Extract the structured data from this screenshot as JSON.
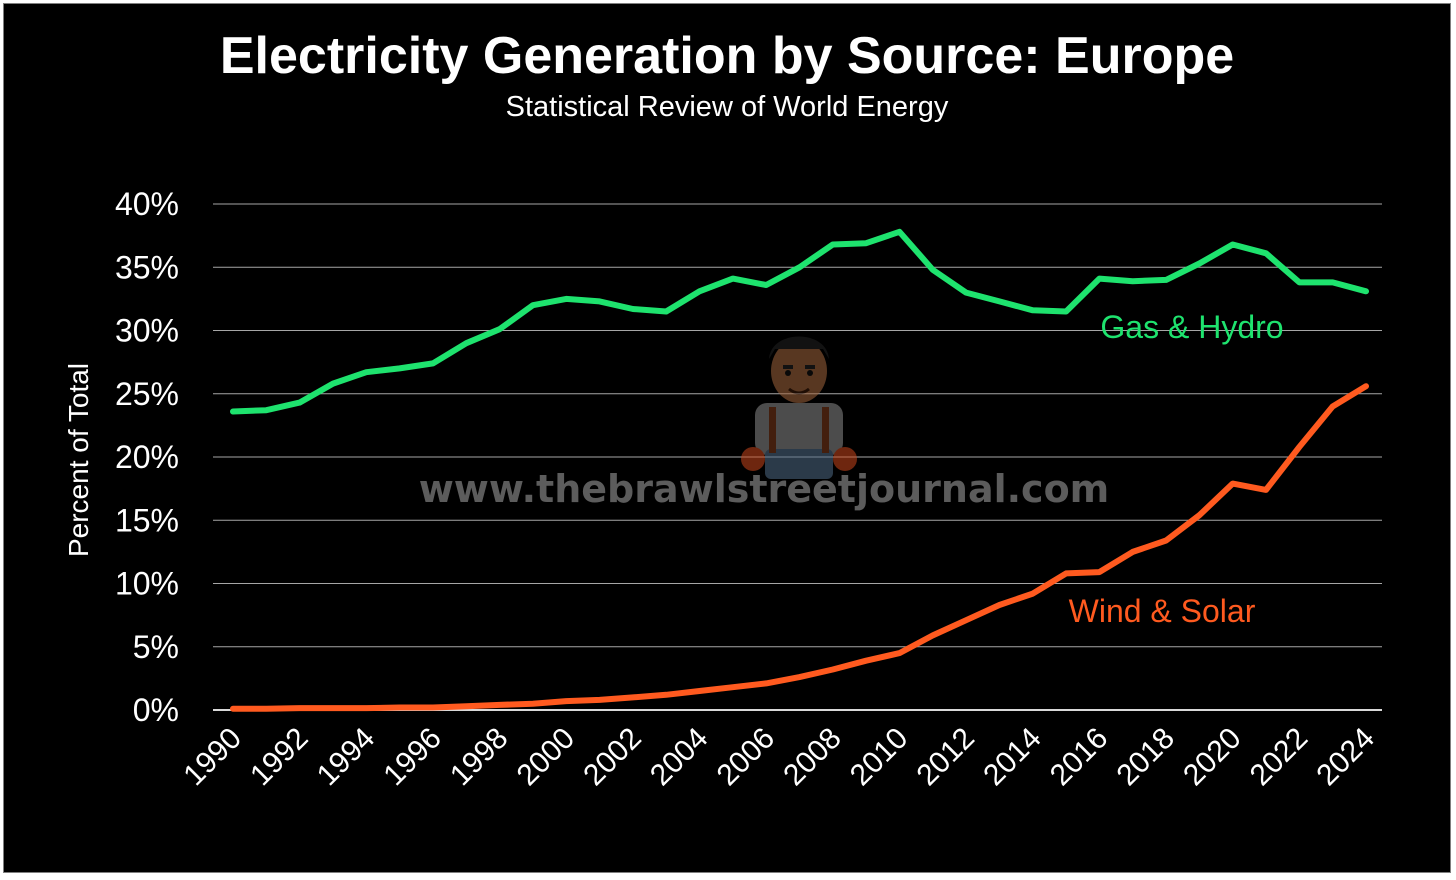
{
  "chart_data": {
    "type": "line",
    "title": "Electricity Generation by Source: Europe",
    "subtitle": "Statistical Review of World Energy",
    "xlabel": "",
    "ylabel": "Percent of Total",
    "ylim": [
      0,
      40
    ],
    "yticks": [
      "0%",
      "5%",
      "10%",
      "15%",
      "20%",
      "25%",
      "30%",
      "35%",
      "40%"
    ],
    "xtick_labels": [
      "1990",
      "1992",
      "1994",
      "1996",
      "1998",
      "2000",
      "2002",
      "2004",
      "2006",
      "2008",
      "2010",
      "2012",
      "2014",
      "2016",
      "2018",
      "2020",
      "2022",
      "2024"
    ],
    "grid": true,
    "x": [
      1990,
      1991,
      1992,
      1993,
      1994,
      1995,
      1996,
      1997,
      1998,
      1999,
      2000,
      2001,
      2002,
      2003,
      2004,
      2005,
      2006,
      2007,
      2008,
      2009,
      2010,
      2011,
      2012,
      2013,
      2014,
      2015,
      2016,
      2017,
      2018,
      2019,
      2020,
      2021,
      2022,
      2023,
      2024
    ],
    "series": [
      {
        "name": "Gas & Hydro",
        "color": "#1ee36e",
        "values": [
          23.6,
          23.7,
          24.3,
          25.8,
          26.7,
          27.0,
          27.4,
          29.0,
          30.1,
          32.0,
          32.5,
          32.3,
          31.7,
          31.5,
          33.1,
          34.1,
          33.6,
          35.0,
          36.8,
          36.9,
          37.8,
          34.8,
          33.0,
          32.3,
          31.6,
          31.5,
          34.1,
          33.9,
          34.0,
          35.3,
          36.8,
          36.1,
          33.8,
          33.8,
          33.1
        ]
      },
      {
        "name": "Wind & Solar",
        "color": "#ff5a1f",
        "values": [
          0.1,
          0.1,
          0.15,
          0.15,
          0.15,
          0.2,
          0.2,
          0.3,
          0.4,
          0.5,
          0.7,
          0.8,
          1.0,
          1.2,
          1.5,
          1.8,
          2.1,
          2.6,
          3.2,
          3.9,
          4.5,
          5.9,
          7.1,
          8.3,
          9.2,
          10.8,
          10.9,
          12.5,
          13.4,
          15.4,
          17.9,
          17.4,
          20.8,
          24.0,
          25.6
        ]
      }
    ],
    "annotations": {
      "gas_label": "Gas & Hydro",
      "wind_label": "Wind & Solar"
    },
    "watermark": "www.thebrawlstreetjournal.com"
  }
}
